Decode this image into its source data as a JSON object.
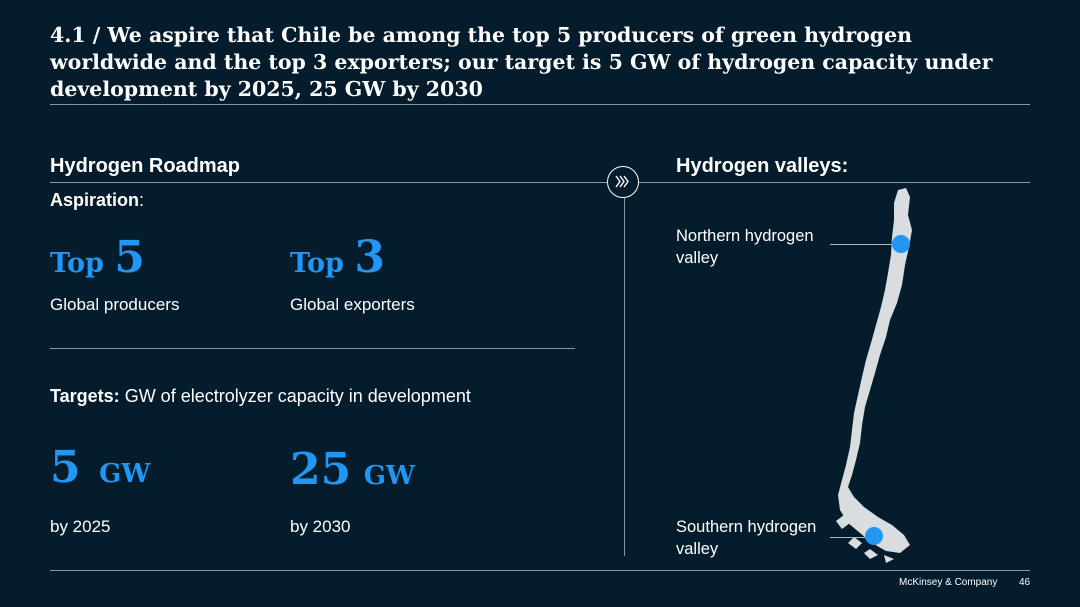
{
  "title": "4.1 / We aspire that Chile be among the top 5 producers of green hydrogen worldwide and the top 3 exporters; our target is 5 GW of hydrogen capacity under development by 2025, 25 GW by 2030",
  "roadmap": {
    "heading": "Hydrogen Roadmap",
    "aspiration_label": "Aspiration",
    "aspiration_colon": ":",
    "aspirations": [
      {
        "prefix": "Top",
        "number": "5",
        "caption": "Global producers"
      },
      {
        "prefix": "Top",
        "number": "3",
        "caption": "Global exporters"
      }
    ],
    "targets_label": "Targets:",
    "targets_text": " GW of electrolyzer capacity in development",
    "targets": [
      {
        "value": "5",
        "unit": "GW",
        "caption": "by 2025"
      },
      {
        "value": "25",
        "unit": "GW",
        "caption": "by 2030"
      }
    ]
  },
  "valleys": {
    "heading": "Hydrogen valleys:",
    "northern": {
      "line1": "Northern hydrogen",
      "line2": "valley"
    },
    "southern": {
      "line1": "Southern hydrogen",
      "line2": "valley"
    },
    "map_icon": "chile-map",
    "marker_color": "#2196f3"
  },
  "badge_icon": "double-chevron-right-icon",
  "footer": {
    "brand": "McKinsey & Company",
    "page": "46"
  },
  "colors": {
    "background": "#051c2c",
    "accent": "#2196f3",
    "map": "#d9dde0"
  }
}
